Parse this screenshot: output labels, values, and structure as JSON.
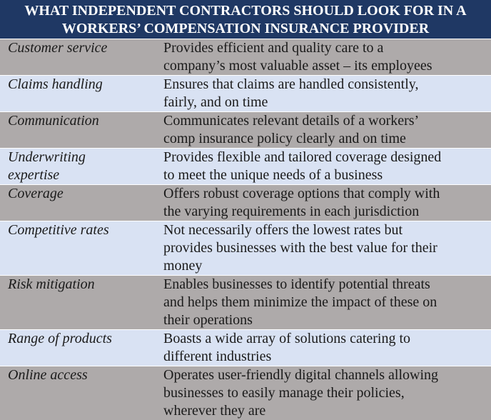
{
  "title_lines": [
    "WHAT INDEPENDENT CONTRACTORS SHOULD LOOK FOR IN A",
    "WORKERS’ COMPENSATION INSURANCE PROVIDER"
  ],
  "colors": {
    "header": "#1f3864",
    "row_gray": "#aeaaaa",
    "row_blue": "#d9e2f3"
  },
  "rows": [
    {
      "label": "Customer service",
      "desc": [
        "Provides efficient and quality care to a",
        "company’s most valuable asset – its employees"
      ]
    },
    {
      "label": "Claims handling",
      "desc": [
        "Ensures that claims are handled consistently,",
        "fairly, and on time"
      ]
    },
    {
      "label": "Communication",
      "desc": [
        "Communicates relevant details of a workers’",
        "comp insurance policy clearly and on time"
      ]
    },
    {
      "label_lines": [
        "Underwriting",
        "expertise"
      ],
      "desc": [
        "Provides flexible and tailored coverage designed",
        "to meet the unique needs of a business"
      ]
    },
    {
      "label": "Coverage",
      "desc": [
        "Offers robust coverage options that comply with",
        "the varying requirements in each jurisdiction"
      ]
    },
    {
      "label": "Competitive rates",
      "desc": [
        "Not necessarily offers the lowest rates but",
        "provides businesses with the best value for their",
        "money"
      ]
    },
    {
      "label": "Risk mitigation",
      "desc": [
        "Enables businesses to identify potential threats",
        "and helps them minimize the impact of these on",
        "their operations"
      ]
    },
    {
      "label": "Range of products",
      "desc": [
        "Boasts a wide array of solutions catering to",
        "different industries"
      ]
    },
    {
      "label": "Online access",
      "desc": [
        "Operates user-friendly digital channels allowing",
        "businesses to easily manage their policies,",
        "wherever they are"
      ]
    }
  ]
}
